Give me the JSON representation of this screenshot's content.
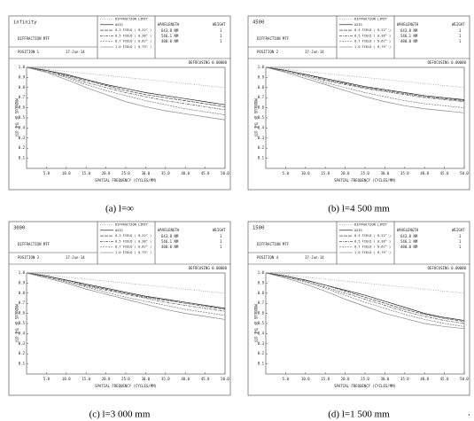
{
  "chart_data": [
    {
      "type": "line",
      "title": "infinity",
      "subtitle": "DIFFRACTION MTF",
      "position": "POSITION 1",
      "date": "17-Jun-14",
      "defocus": "DEFOCUSING 0.00000",
      "wavelength_header": [
        "WAVELENGTH",
        "WEIGHT"
      ],
      "wavelengths": [
        [
          "643.8 NM",
          "1"
        ],
        [
          "546.1 NM",
          "1"
        ],
        [
          "480.0 NM",
          "1"
        ]
      ],
      "x_label": "SPATIAL FREQUENCY (CYCLES/MM)",
      "y_label": "MODULUS OF THE OTF",
      "caption": "(a) l=∞",
      "x": [
        0,
        5,
        10,
        15,
        20,
        25,
        30,
        35,
        40,
        45,
        50
      ],
      "xlim": [
        0,
        50
      ],
      "ylim": [
        0,
        1
      ],
      "xticks": [
        {
          "value": 5,
          "label": "5.0"
        },
        {
          "value": 10,
          "label": "10.0"
        },
        {
          "value": 15,
          "label": "15.0"
        },
        {
          "value": 20,
          "label": "20.0"
        },
        {
          "value": 25,
          "label": "25.0"
        },
        {
          "value": 30,
          "label": "30.0"
        },
        {
          "value": 35,
          "label": "35.0"
        },
        {
          "value": 40,
          "label": "40.0"
        },
        {
          "value": 45,
          "label": "45.0"
        },
        {
          "value": 50,
          "label": "50.0"
        }
      ],
      "yticks": [
        0.1,
        0.2,
        0.3,
        0.4,
        0.5,
        0.6,
        0.7,
        0.8,
        0.9,
        {
          "value": 1,
          "label": "1.0"
        }
      ],
      "series": [
        {
          "name": "DIFFRACTION LIMIT",
          "color": "#999999",
          "dash": "1,1.5",
          "values": [
            1,
            0.98,
            0.96,
            0.94,
            0.92,
            0.9,
            0.88,
            0.86,
            0.84,
            0.82,
            0.8
          ]
        },
        {
          "name": "AXIS",
          "color": "#222222",
          "dash": "none",
          "values": [
            1,
            0.97,
            0.93,
            0.88,
            0.83,
            0.79,
            0.75,
            0.72,
            0.69,
            0.66,
            0.63
          ]
        },
        {
          "name": "0.3 FIELD ( 0.22° )",
          "color": "#444444",
          "dash": "4,1",
          "values": [
            1,
            0.97,
            0.92,
            0.87,
            0.82,
            0.77,
            0.73,
            0.7,
            0.67,
            0.64,
            0.61
          ]
        },
        {
          "name": "0.5 FIELD ( 0.38° )",
          "color": "#555555",
          "dash": "3,1,1,1",
          "values": [
            1,
            0.96,
            0.91,
            0.85,
            0.8,
            0.75,
            0.71,
            0.67,
            0.64,
            0.61,
            0.58
          ]
        },
        {
          "name": "0.7 FIELD ( 0.62° )",
          "color": "#777777",
          "dash": "2,1",
          "values": [
            1,
            0.96,
            0.9,
            0.83,
            0.77,
            0.72,
            0.67,
            0.63,
            0.59,
            0.56,
            0.53
          ]
        },
        {
          "name": "1.0 FIELD ( 0.79° )",
          "color": "#888888",
          "dash": "none",
          "values": [
            1,
            0.95,
            0.88,
            0.8,
            0.73,
            0.66,
            0.61,
            0.57,
            0.54,
            0.51,
            0.48
          ]
        }
      ]
    },
    {
      "type": "line",
      "title": "4500",
      "subtitle": "DIFFRACTION MTF",
      "position": "POSITION 2",
      "date": "17-Jun-14",
      "defocus": "DEFOCUSING 0.00000",
      "wavelength_header": [
        "WAVELENGTH",
        "WEIGHT"
      ],
      "wavelengths": [
        [
          "643.8 NM",
          "1"
        ],
        [
          "546.1 NM",
          "1"
        ],
        [
          "480.0 NM",
          "1"
        ]
      ],
      "x_label": "SPATIAL FREQUENCY (CYCLES/MM)",
      "y_label": "MODULUS OF THE OTF",
      "caption": "(b) l=4 500 mm",
      "x": [
        0,
        5,
        10,
        15,
        20,
        25,
        30,
        35,
        40,
        45,
        50
      ],
      "xlim": [
        0,
        50
      ],
      "ylim": [
        0,
        1
      ],
      "xticks": [
        {
          "value": 5,
          "label": "5.0"
        },
        {
          "value": 10,
          "label": "10.0"
        },
        {
          "value": 15,
          "label": "15.0"
        },
        {
          "value": 20,
          "label": "20.0"
        },
        {
          "value": 25,
          "label": "25.0"
        },
        {
          "value": 30,
          "label": "30.0"
        },
        {
          "value": 35,
          "label": "35.0"
        },
        {
          "value": 40,
          "label": "40.0"
        },
        {
          "value": 45,
          "label": "45.0"
        },
        {
          "value": 50,
          "label": "50.0"
        }
      ],
      "yticks": [
        0.1,
        0.2,
        0.3,
        0.4,
        0.5,
        0.6,
        0.7,
        0.8,
        0.9,
        {
          "value": 1,
          "label": "1.0"
        }
      ],
      "series": [
        {
          "name": "DIFFRACTION LIMIT",
          "color": "#999999",
          "dash": "1,1.5",
          "values": [
            1,
            0.98,
            0.96,
            0.94,
            0.92,
            0.9,
            0.88,
            0.86,
            0.84,
            0.82,
            0.8
          ]
        },
        {
          "name": "AXIS",
          "color": "#222222",
          "dash": "none",
          "values": [
            1,
            0.97,
            0.93,
            0.89,
            0.85,
            0.81,
            0.78,
            0.75,
            0.72,
            0.7,
            0.68
          ]
        },
        {
          "name": "0.3 FIELD ( 0.22° )",
          "color": "#444444",
          "dash": "4,1",
          "values": [
            1,
            0.97,
            0.93,
            0.88,
            0.84,
            0.8,
            0.77,
            0.74,
            0.71,
            0.69,
            0.67
          ]
        },
        {
          "name": "0.5 FIELD ( 0.38° )",
          "color": "#555555",
          "dash": "3,1,1,1",
          "values": [
            1,
            0.96,
            0.92,
            0.87,
            0.83,
            0.79,
            0.76,
            0.73,
            0.7,
            0.68,
            0.66
          ]
        },
        {
          "name": "0.7 FIELD ( 0.62° )",
          "color": "#777777",
          "dash": "2,1",
          "values": [
            1,
            0.96,
            0.91,
            0.85,
            0.8,
            0.75,
            0.71,
            0.67,
            0.64,
            0.62,
            0.6
          ]
        },
        {
          "name": "1.0 FIELD ( 0.79° )",
          "color": "#888888",
          "dash": "none",
          "values": [
            1,
            0.95,
            0.89,
            0.83,
            0.77,
            0.71,
            0.66,
            0.62,
            0.59,
            0.57,
            0.55
          ]
        }
      ]
    },
    {
      "type": "line",
      "title": "3000",
      "subtitle": "DIFFRACTION MTF",
      "position": "POSITION 3",
      "date": "17-Jun-14",
      "defocus": "DEFOCUSING 0.00000",
      "wavelength_header": [
        "WAVELENGTH",
        "WEIGHT"
      ],
      "wavelengths": [
        [
          "643.8 NM",
          "1"
        ],
        [
          "546.1 NM",
          "1"
        ],
        [
          "480.0 NM",
          "1"
        ]
      ],
      "x_label": "SPATIAL FREQUENCY (CYCLES/MM)",
      "y_label": "MODULUS OF THE OTF",
      "caption": "(c) l=3 000 mm",
      "x": [
        0,
        5,
        10,
        15,
        20,
        25,
        30,
        35,
        40,
        45,
        50
      ],
      "xlim": [
        0,
        50
      ],
      "ylim": [
        0,
        1
      ],
      "xticks": [
        {
          "value": 5,
          "label": "5.0"
        },
        {
          "value": 10,
          "label": "10.0"
        },
        {
          "value": 15,
          "label": "15.0"
        },
        {
          "value": 20,
          "label": "20.0"
        },
        {
          "value": 25,
          "label": "25.0"
        },
        {
          "value": 30,
          "label": "30.0"
        },
        {
          "value": 35,
          "label": "35.0"
        },
        {
          "value": 40,
          "label": "40.0"
        },
        {
          "value": 45,
          "label": "45.0"
        },
        {
          "value": 50,
          "label": "50.0"
        }
      ],
      "yticks": [
        0.1,
        0.2,
        0.3,
        0.4,
        0.5,
        0.6,
        0.7,
        0.8,
        0.9,
        {
          "value": 1,
          "label": "1.0"
        }
      ],
      "series": [
        {
          "name": "DIFFRACTION LIMIT",
          "color": "#999999",
          "dash": "1,1.5",
          "values": [
            1,
            0.98,
            0.96,
            0.94,
            0.92,
            0.9,
            0.88,
            0.86,
            0.84,
            0.82,
            0.8
          ]
        },
        {
          "name": "AXIS",
          "color": "#222222",
          "dash": "none",
          "values": [
            1,
            0.97,
            0.93,
            0.89,
            0.85,
            0.81,
            0.77,
            0.74,
            0.71,
            0.68,
            0.65
          ]
        },
        {
          "name": "0.3 FIELD ( 0.22° )",
          "color": "#444444",
          "dash": "4,1",
          "values": [
            1,
            0.97,
            0.93,
            0.88,
            0.84,
            0.8,
            0.76,
            0.73,
            0.7,
            0.67,
            0.64
          ]
        },
        {
          "name": "0.5 FIELD ( 0.38° )",
          "color": "#555555",
          "dash": "3,1,1,1",
          "values": [
            1,
            0.96,
            0.92,
            0.87,
            0.83,
            0.79,
            0.75,
            0.71,
            0.68,
            0.65,
            0.62
          ]
        },
        {
          "name": "0.7 FIELD ( 0.62° )",
          "color": "#777777",
          "dash": "2,1",
          "values": [
            1,
            0.96,
            0.91,
            0.86,
            0.81,
            0.76,
            0.72,
            0.68,
            0.64,
            0.61,
            0.58
          ]
        },
        {
          "name": "1.0 FIELD ( 0.79° )",
          "color": "#888888",
          "dash": "none",
          "values": [
            1,
            0.95,
            0.9,
            0.84,
            0.79,
            0.74,
            0.69,
            0.64,
            0.6,
            0.57,
            0.54
          ]
        }
      ]
    },
    {
      "type": "line",
      "title": "1500",
      "subtitle": "DIFFRACTION MTF",
      "position": "POSITION 4",
      "date": "17-Jun-14",
      "defocus": "DEFOCUSING 0.00000",
      "wavelength_header": [
        "WAVELENGTH",
        "WEIGHT"
      ],
      "wavelengths": [
        [
          "643.8 NM",
          "1"
        ],
        [
          "546.1 NM",
          "1"
        ],
        [
          "480.0 NM",
          "1"
        ]
      ],
      "x_label": "SPATIAL FREQUENCY (CYCLES/MM)",
      "y_label": "MODULUS OF THE OTF",
      "caption": "(d) l=1 500 mm",
      "x": [
        0,
        5,
        10,
        15,
        20,
        25,
        30,
        35,
        40,
        45,
        50
      ],
      "xlim": [
        0,
        50
      ],
      "ylim": [
        0,
        1
      ],
      "xticks": [
        {
          "value": 5,
          "label": "5.0"
        },
        {
          "value": 10,
          "label": "10.0"
        },
        {
          "value": 15,
          "label": "15.0"
        },
        {
          "value": 20,
          "label": "20.0"
        },
        {
          "value": 25,
          "label": "25.0"
        },
        {
          "value": 30,
          "label": "30.0"
        },
        {
          "value": 35,
          "label": "35.0"
        },
        {
          "value": 40,
          "label": "40.0"
        },
        {
          "value": 45,
          "label": "45.0"
        },
        {
          "value": 50,
          "label": "50.0"
        }
      ],
      "yticks": [
        0.1,
        0.2,
        0.3,
        0.4,
        0.5,
        0.6,
        0.7,
        0.8,
        0.9,
        {
          "value": 1,
          "label": "1.0"
        }
      ],
      "series": [
        {
          "name": "DIFFRACTION LIMIT",
          "color": "#999999",
          "dash": "1,1.5",
          "values": [
            1,
            0.98,
            0.96,
            0.94,
            0.92,
            0.9,
            0.88,
            0.86,
            0.84,
            0.82,
            0.8
          ]
        },
        {
          "name": "AXIS",
          "color": "#222222",
          "dash": "none",
          "values": [
            1,
            0.97,
            0.93,
            0.88,
            0.83,
            0.78,
            0.72,
            0.66,
            0.6,
            0.56,
            0.53
          ]
        },
        {
          "name": "0.3 FIELD ( 0.22° )",
          "color": "#444444",
          "dash": "4,1",
          "values": [
            1,
            0.97,
            0.93,
            0.88,
            0.82,
            0.76,
            0.7,
            0.64,
            0.59,
            0.55,
            0.52
          ]
        },
        {
          "name": "0.5 FIELD ( 0.38° )",
          "color": "#555555",
          "dash": "3,1,1,1",
          "values": [
            1,
            0.96,
            0.92,
            0.86,
            0.8,
            0.74,
            0.68,
            0.62,
            0.57,
            0.53,
            0.5
          ]
        },
        {
          "name": "0.7 FIELD ( 0.62° )",
          "color": "#777777",
          "dash": "2,1",
          "values": [
            1,
            0.96,
            0.91,
            0.85,
            0.78,
            0.71,
            0.65,
            0.59,
            0.54,
            0.5,
            0.47
          ]
        },
        {
          "name": "1.0 FIELD ( 0.79° )",
          "color": "#888888",
          "dash": "none",
          "values": [
            1,
            0.95,
            0.89,
            0.82,
            0.74,
            0.67,
            0.6,
            0.55,
            0.5,
            0.47,
            0.45
          ]
        }
      ]
    }
  ],
  "trailing_mark": "."
}
